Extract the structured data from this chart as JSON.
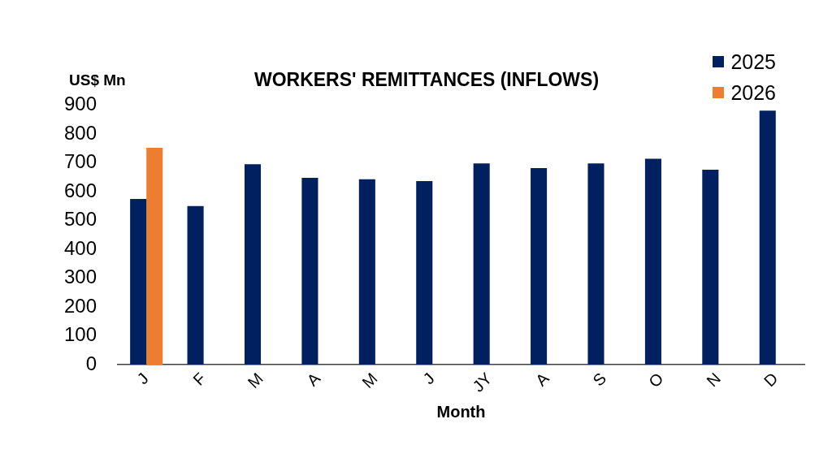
{
  "chart_data": {
    "type": "bar",
    "title": "WORKERS' REMITTANCES (INFLOWS)",
    "xlabel": "Month",
    "ylabel": "US$ Mn",
    "categories": [
      "J",
      "F",
      "M",
      "A",
      "M",
      "J",
      "JY",
      "A",
      "S",
      "O",
      "N",
      "D"
    ],
    "series": [
      {
        "name": "2025",
        "color": "#002060",
        "values": [
          575,
          550,
          695,
          648,
          643,
          637,
          698,
          682,
          698,
          714,
          676,
          881
        ]
      },
      {
        "name": "2026",
        "color": "#ed7d31",
        "values": [
          752,
          null,
          null,
          null,
          null,
          null,
          null,
          null,
          null,
          null,
          null,
          null
        ]
      }
    ],
    "ylim": [
      0,
      900
    ],
    "yticks": [
      0,
      100,
      200,
      300,
      400,
      500,
      600,
      700,
      800,
      900
    ],
    "legend": "top right"
  }
}
